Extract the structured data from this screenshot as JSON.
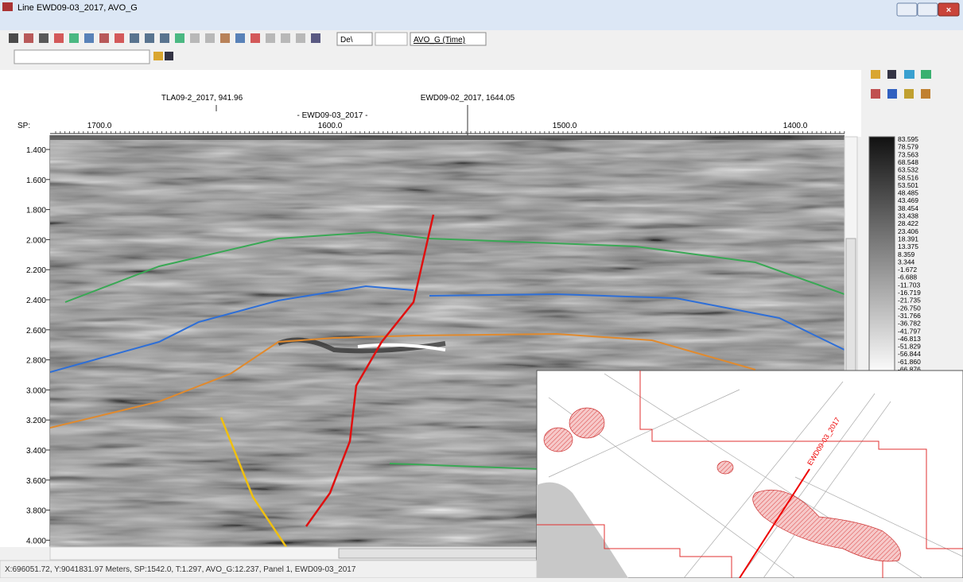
{
  "window": {
    "title": "Line EWD09-03_2017, AVO_G"
  },
  "toolbar": {
    "combo1": "De\\",
    "combo2": "AVO_G (Time)"
  },
  "header": {
    "wells": [
      "TLA09-2_2017, 941.96",
      "EWD09-02_2017, 1644.05"
    ],
    "line_label": "- EWD09-03_2017 -",
    "sp_label": "SP:",
    "sp_ticks": [
      "1700.0",
      "1600.0",
      "1500.0",
      "1400.0"
    ]
  },
  "time_axis": [
    "1.400",
    "1.600",
    "1.800",
    "2.000",
    "2.200",
    "2.400",
    "2.600",
    "2.800",
    "3.000",
    "3.200",
    "3.400",
    "3.600",
    "3.800",
    "4.000"
  ],
  "colorbar": [
    "83.595",
    "78.579",
    "73.563",
    "68.548",
    "63.532",
    "58.516",
    "53.501",
    "48.485",
    "43.469",
    "38.454",
    "33.438",
    "28.422",
    "23.406",
    "18.391",
    "13.375",
    "8.359",
    "3.344",
    "-1.672",
    "-6.688",
    "-11.703",
    "-16.719",
    "-21.735",
    "-26.750",
    "-31.766",
    "-36.782",
    "-41.797",
    "-46.813",
    "-51.829",
    "-56.844",
    "-61.860",
    "-66.876"
  ],
  "map": {
    "line_label": "EWD09-03_2017"
  },
  "status": "X:696051.72, Y:9041831.97 Meters,  SP:1542.0, T:1.297, AVO_G:12.237, Panel 1, EWD09-03_2017"
}
